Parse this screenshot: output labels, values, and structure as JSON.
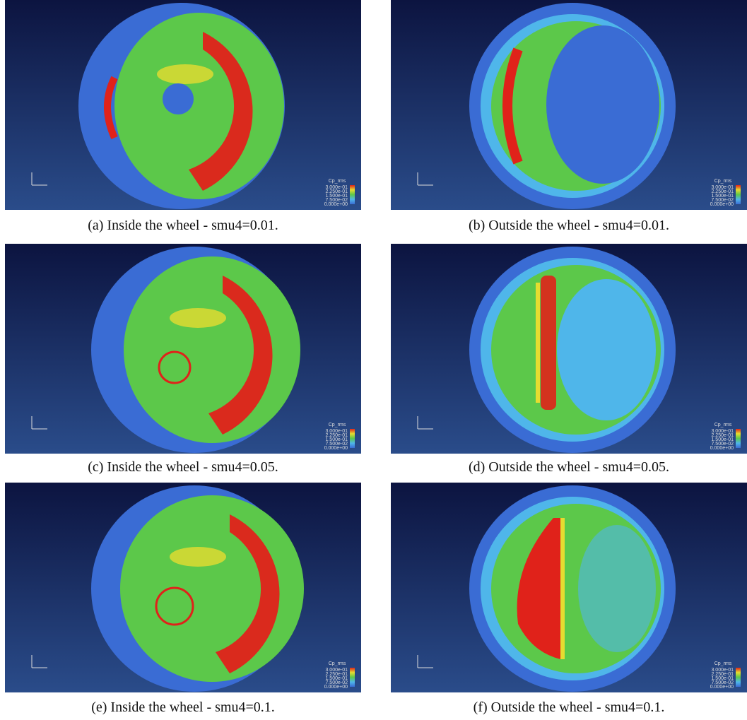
{
  "legend": {
    "title": "Cp_rms",
    "labels": [
      "3.000e-01",
      "2.250e-01",
      "1.500e-01",
      "7.500e-02",
      "0.000e+00"
    ]
  },
  "panels": [
    {
      "caption": "(a) Inside the wheel - smu4=0.01."
    },
    {
      "caption": "(b) Outside the wheel - smu4=0.01."
    },
    {
      "caption": "(c) Inside the wheel - smu4=0.05."
    },
    {
      "caption": "(d) Outside the wheel - smu4=0.05."
    },
    {
      "caption": "(e) Inside the wheel - smu4=0.1."
    },
    {
      "caption": "(f) Outside the wheel - smu4=0.1."
    }
  ]
}
